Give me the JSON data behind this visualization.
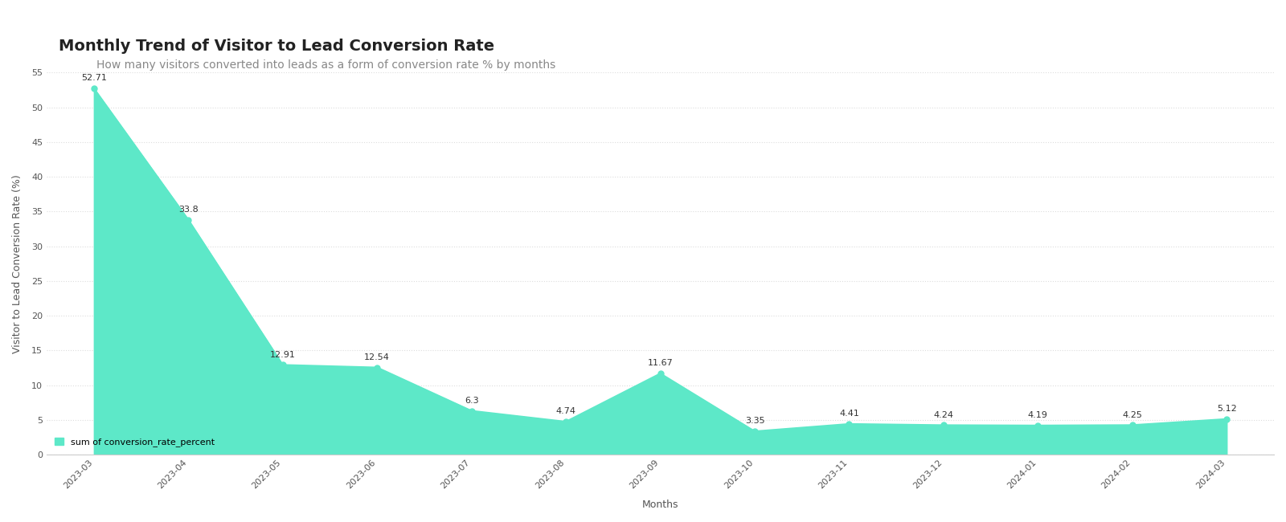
{
  "title": "Monthly Trend of Visitor to Lead Conversion Rate",
  "subtitle": "How many visitors converted into leads as a form of conversion rate % by months",
  "xlabel": "Months",
  "ylabel": "Visitor to Lead Conversion Rate (%)",
  "legend_label": "sum of conversion_rate_percent",
  "months": [
    "2023-03",
    "2023-04",
    "2023-05",
    "2023-06",
    "2023-07",
    "2023-08",
    "2023-09",
    "2023-10",
    "2023-11",
    "2023-12",
    "2024-01",
    "2024-02",
    "2024-03"
  ],
  "values": [
    52.71,
    33.8,
    12.91,
    12.54,
    6.3,
    4.74,
    11.67,
    3.35,
    4.41,
    4.24,
    4.19,
    4.25,
    5.12
  ],
  "ylim": [
    0,
    55
  ],
  "yticks": [
    0,
    5,
    10,
    15,
    20,
    25,
    30,
    35,
    40,
    45,
    50,
    55
  ],
  "fill_color": "#5de8c8",
  "line_color": "#5de8c8",
  "dot_color": "#5de8c8",
  "legend_dot_color": "#5de8c8",
  "background_color": "#ffffff",
  "plot_background": "#ffffff",
  "grid_color": "#dddddd",
  "title_fontsize": 14,
  "subtitle_fontsize": 10,
  "label_fontsize": 9,
  "tick_fontsize": 8,
  "annotation_fontsize": 8
}
